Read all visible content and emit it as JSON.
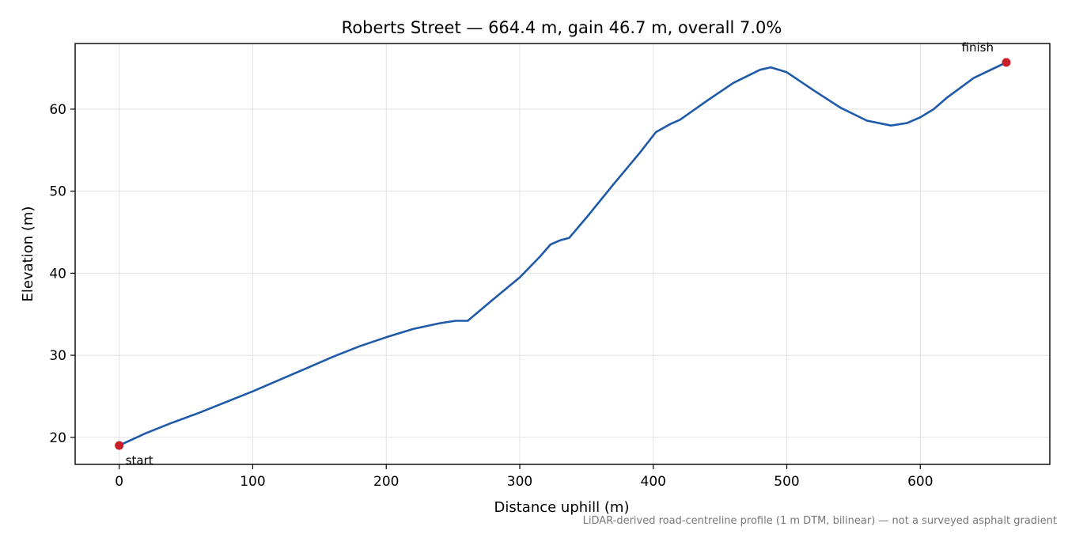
{
  "chart_data": {
    "type": "line",
    "title": "Roberts Street — 664.4 m, gain 46.7 m, overall 7.0%",
    "xlabel": "Distance uphill (m)",
    "ylabel": "Elevation (m)",
    "xlim": [
      -33,
      697
    ],
    "ylim": [
      16.7,
      68.0
    ],
    "xticks": [
      0,
      100,
      200,
      300,
      400,
      500,
      600
    ],
    "yticks": [
      20,
      30,
      40,
      50,
      60
    ],
    "grid": true,
    "line_color": "#1f5aa8",
    "marker_color": "#c81e28",
    "series": [
      {
        "x": [
          0,
          20,
          40,
          60,
          80,
          100,
          120,
          140,
          160,
          180,
          200,
          220,
          240,
          252,
          261,
          280,
          300,
          315,
          323,
          330,
          337,
          350,
          370,
          390,
          402,
          413,
          420,
          440,
          460,
          480,
          488,
          500,
          520,
          540,
          560,
          578,
          590,
          600,
          610,
          620,
          640,
          664.4
        ],
        "y": [
          19.0,
          20.5,
          21.8,
          23.0,
          24.3,
          25.6,
          27.0,
          28.4,
          29.8,
          31.1,
          32.2,
          33.2,
          33.9,
          34.2,
          34.2,
          36.8,
          39.5,
          42.0,
          43.5,
          44.0,
          44.3,
          46.8,
          50.8,
          54.7,
          57.2,
          58.2,
          58.7,
          61.0,
          63.2,
          64.8,
          65.1,
          64.5,
          62.3,
          60.2,
          58.6,
          58.0,
          58.3,
          59.0,
          60.0,
          61.4,
          63.8,
          65.7
        ]
      }
    ],
    "annotations": [
      {
        "text": "start",
        "x": 0,
        "y": 19.0,
        "position": "below-right"
      },
      {
        "text": "finish",
        "x": 664.4,
        "y": 65.7,
        "position": "above-left"
      }
    ]
  },
  "footnote": "LiDAR-derived road-centreline profile (1 m DTM, bilinear) — not a surveyed asphalt gradient"
}
